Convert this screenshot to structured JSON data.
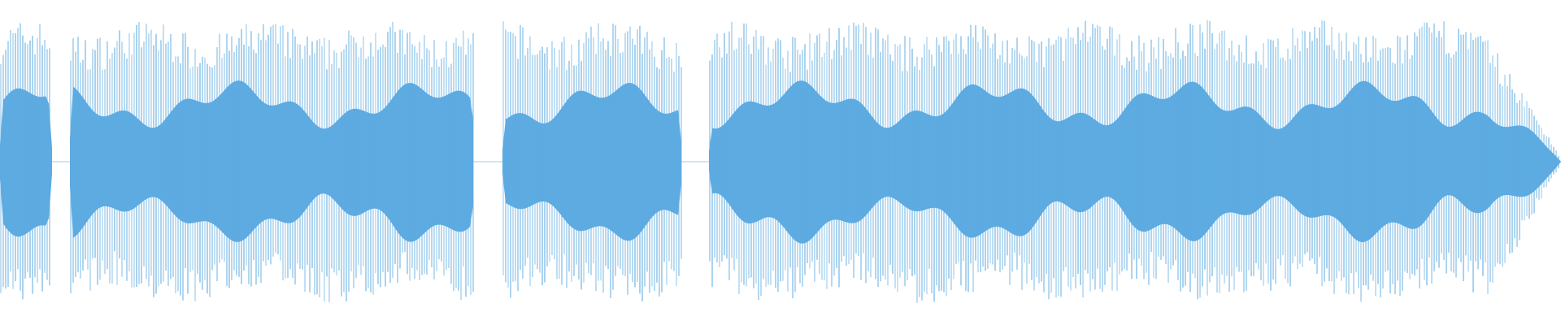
{
  "waveform": {
    "color": "#5dabe1"
  }
}
